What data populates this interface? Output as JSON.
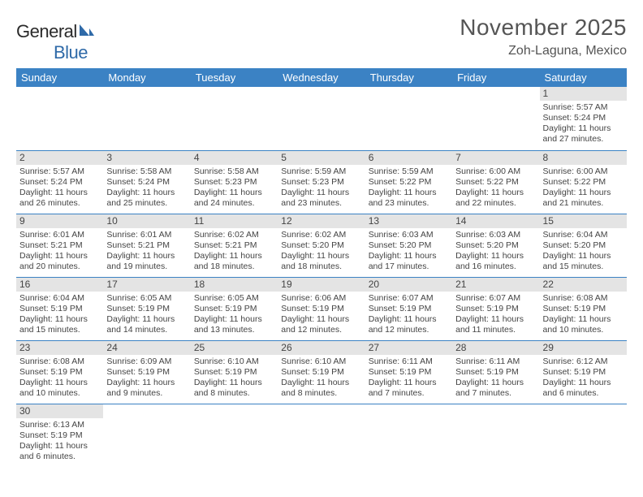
{
  "brand": {
    "part1": "General",
    "part2": "Blue"
  },
  "title": "November 2025",
  "location": "Zoh-Laguna, Mexico",
  "colors": {
    "header_bg": "#3b82c4",
    "header_text": "#ffffff",
    "daynum_bg": "#e4e4e4",
    "cell_border": "#3b82c4",
    "body_text": "#444444",
    "brand_blue": "#2f6aa8"
  },
  "typography": {
    "title_fontsize": 28,
    "location_fontsize": 16,
    "weekday_fontsize": 13,
    "cell_fontsize": 10.5
  },
  "weekdays": [
    "Sunday",
    "Monday",
    "Tuesday",
    "Wednesday",
    "Thursday",
    "Friday",
    "Saturday"
  ],
  "weeks": [
    [
      null,
      null,
      null,
      null,
      null,
      null,
      {
        "n": 1,
        "sunrise": "5:57 AM",
        "sunset": "5:24 PM",
        "day_h": 11,
        "day_m": 27
      }
    ],
    [
      {
        "n": 2,
        "sunrise": "5:57 AM",
        "sunset": "5:24 PM",
        "day_h": 11,
        "day_m": 26
      },
      {
        "n": 3,
        "sunrise": "5:58 AM",
        "sunset": "5:24 PM",
        "day_h": 11,
        "day_m": 25
      },
      {
        "n": 4,
        "sunrise": "5:58 AM",
        "sunset": "5:23 PM",
        "day_h": 11,
        "day_m": 24
      },
      {
        "n": 5,
        "sunrise": "5:59 AM",
        "sunset": "5:23 PM",
        "day_h": 11,
        "day_m": 23
      },
      {
        "n": 6,
        "sunrise": "5:59 AM",
        "sunset": "5:22 PM",
        "day_h": 11,
        "day_m": 23
      },
      {
        "n": 7,
        "sunrise": "6:00 AM",
        "sunset": "5:22 PM",
        "day_h": 11,
        "day_m": 22
      },
      {
        "n": 8,
        "sunrise": "6:00 AM",
        "sunset": "5:22 PM",
        "day_h": 11,
        "day_m": 21
      }
    ],
    [
      {
        "n": 9,
        "sunrise": "6:01 AM",
        "sunset": "5:21 PM",
        "day_h": 11,
        "day_m": 20
      },
      {
        "n": 10,
        "sunrise": "6:01 AM",
        "sunset": "5:21 PM",
        "day_h": 11,
        "day_m": 19
      },
      {
        "n": 11,
        "sunrise": "6:02 AM",
        "sunset": "5:21 PM",
        "day_h": 11,
        "day_m": 18
      },
      {
        "n": 12,
        "sunrise": "6:02 AM",
        "sunset": "5:20 PM",
        "day_h": 11,
        "day_m": 18
      },
      {
        "n": 13,
        "sunrise": "6:03 AM",
        "sunset": "5:20 PM",
        "day_h": 11,
        "day_m": 17
      },
      {
        "n": 14,
        "sunrise": "6:03 AM",
        "sunset": "5:20 PM",
        "day_h": 11,
        "day_m": 16
      },
      {
        "n": 15,
        "sunrise": "6:04 AM",
        "sunset": "5:20 PM",
        "day_h": 11,
        "day_m": 15
      }
    ],
    [
      {
        "n": 16,
        "sunrise": "6:04 AM",
        "sunset": "5:19 PM",
        "day_h": 11,
        "day_m": 15
      },
      {
        "n": 17,
        "sunrise": "6:05 AM",
        "sunset": "5:19 PM",
        "day_h": 11,
        "day_m": 14
      },
      {
        "n": 18,
        "sunrise": "6:05 AM",
        "sunset": "5:19 PM",
        "day_h": 11,
        "day_m": 13
      },
      {
        "n": 19,
        "sunrise": "6:06 AM",
        "sunset": "5:19 PM",
        "day_h": 11,
        "day_m": 12
      },
      {
        "n": 20,
        "sunrise": "6:07 AM",
        "sunset": "5:19 PM",
        "day_h": 11,
        "day_m": 12
      },
      {
        "n": 21,
        "sunrise": "6:07 AM",
        "sunset": "5:19 PM",
        "day_h": 11,
        "day_m": 11
      },
      {
        "n": 22,
        "sunrise": "6:08 AM",
        "sunset": "5:19 PM",
        "day_h": 11,
        "day_m": 10
      }
    ],
    [
      {
        "n": 23,
        "sunrise": "6:08 AM",
        "sunset": "5:19 PM",
        "day_h": 11,
        "day_m": 10
      },
      {
        "n": 24,
        "sunrise": "6:09 AM",
        "sunset": "5:19 PM",
        "day_h": 11,
        "day_m": 9
      },
      {
        "n": 25,
        "sunrise": "6:10 AM",
        "sunset": "5:19 PM",
        "day_h": 11,
        "day_m": 8
      },
      {
        "n": 26,
        "sunrise": "6:10 AM",
        "sunset": "5:19 PM",
        "day_h": 11,
        "day_m": 8
      },
      {
        "n": 27,
        "sunrise": "6:11 AM",
        "sunset": "5:19 PM",
        "day_h": 11,
        "day_m": 7
      },
      {
        "n": 28,
        "sunrise": "6:11 AM",
        "sunset": "5:19 PM",
        "day_h": 11,
        "day_m": 7
      },
      {
        "n": 29,
        "sunrise": "6:12 AM",
        "sunset": "5:19 PM",
        "day_h": 11,
        "day_m": 6
      }
    ],
    [
      {
        "n": 30,
        "sunrise": "6:13 AM",
        "sunset": "5:19 PM",
        "day_h": 11,
        "day_m": 6
      },
      null,
      null,
      null,
      null,
      null,
      null
    ]
  ],
  "labels": {
    "sunrise": "Sunrise:",
    "sunset": "Sunset:",
    "daylight": "Daylight:",
    "hours": "hours",
    "and": "and",
    "minutes": "minutes."
  }
}
